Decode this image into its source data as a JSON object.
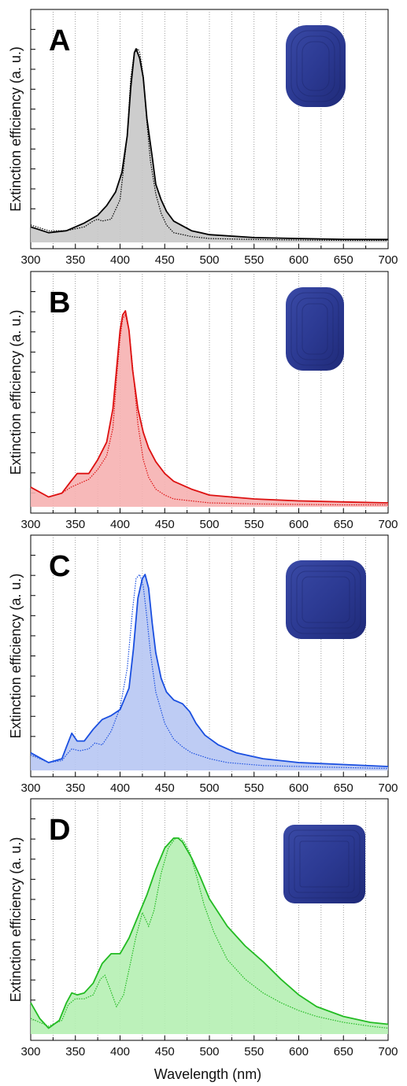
{
  "figure": {
    "ylabel": "Extinction efficiency (a. u.)",
    "xlabel": "Wavelength (nm)"
  },
  "chart_data": [
    {
      "type": "line",
      "panel_label": "A",
      "xlim": [
        300,
        700
      ],
      "xticks": [
        300,
        350,
        400,
        450,
        500,
        550,
        600,
        650,
        700
      ],
      "ylim": [
        0,
        1
      ],
      "grid": "vertical dotted",
      "color": "#000000",
      "fill_color": "#c8c8c8",
      "inset": "nanocube-icon",
      "series": [
        {
          "style": "solid",
          "x": [
            300,
            320,
            340,
            360,
            375,
            385,
            395,
            402,
            408,
            412,
            416,
            418,
            422,
            426,
            430,
            436,
            440,
            446,
            452,
            460,
            480,
            500,
            550,
            600,
            650,
            700
          ],
          "y": [
            0.08,
            0.05,
            0.06,
            0.1,
            0.14,
            0.19,
            0.26,
            0.36,
            0.55,
            0.8,
            0.98,
            1.0,
            0.95,
            0.85,
            0.64,
            0.44,
            0.3,
            0.22,
            0.16,
            0.11,
            0.06,
            0.04,
            0.025,
            0.02,
            0.016,
            0.015
          ]
        },
        {
          "style": "dotted",
          "x": [
            300,
            320,
            340,
            360,
            370,
            375,
            380,
            390,
            400,
            408,
            412,
            416,
            420,
            422,
            426,
            430,
            434,
            440,
            446,
            452,
            460,
            480,
            500,
            550,
            600,
            650,
            700
          ],
          "y": [
            0.09,
            0.06,
            0.06,
            0.08,
            0.11,
            0.12,
            0.11,
            0.12,
            0.22,
            0.55,
            0.85,
            0.98,
            1.0,
            0.98,
            0.86,
            0.62,
            0.42,
            0.25,
            0.15,
            0.09,
            0.05,
            0.03,
            0.02,
            0.015,
            0.012,
            0.01,
            0.01
          ]
        }
      ]
    },
    {
      "type": "line",
      "panel_label": "B",
      "xlim": [
        300,
        700
      ],
      "xticks": [
        300,
        350,
        400,
        450,
        500,
        550,
        600,
        650,
        700
      ],
      "ylim": [
        0,
        1
      ],
      "grid": "vertical dotted",
      "color": "#dd1111",
      "fill_color": "#f6b1b1",
      "inset": "nanocube-icon",
      "series": [
        {
          "style": "solid",
          "x": [
            300,
            320,
            335,
            345,
            352,
            358,
            365,
            375,
            385,
            392,
            396,
            400,
            403,
            406,
            410,
            414,
            420,
            426,
            432,
            440,
            450,
            460,
            480,
            500,
            550,
            600,
            650,
            700
          ],
          "y": [
            0.1,
            0.05,
            0.07,
            0.13,
            0.17,
            0.17,
            0.17,
            0.24,
            0.33,
            0.5,
            0.7,
            0.9,
            0.98,
            1.0,
            0.9,
            0.7,
            0.5,
            0.38,
            0.3,
            0.23,
            0.17,
            0.13,
            0.09,
            0.06,
            0.04,
            0.03,
            0.025,
            0.02
          ]
        },
        {
          "style": "dotted",
          "x": [
            300,
            320,
            335,
            345,
            355,
            365,
            375,
            385,
            392,
            396,
            400,
            403,
            406,
            410,
            414,
            420,
            426,
            432,
            440,
            450,
            460,
            480,
            500,
            550,
            600,
            650,
            700
          ],
          "y": [
            0.1,
            0.05,
            0.07,
            0.1,
            0.12,
            0.14,
            0.19,
            0.26,
            0.4,
            0.65,
            0.86,
            0.96,
            0.98,
            0.9,
            0.72,
            0.42,
            0.24,
            0.15,
            0.09,
            0.06,
            0.04,
            0.03,
            0.02,
            0.015,
            0.012,
            0.01,
            0.01
          ]
        }
      ]
    },
    {
      "type": "line",
      "panel_label": "C",
      "xlim": [
        300,
        700
      ],
      "xticks": [
        300,
        350,
        400,
        450,
        500,
        550,
        600,
        650,
        700
      ],
      "ylim": [
        0,
        1
      ],
      "grid": "vertical dotted",
      "color": "#1a4fe0",
      "fill_color": "#b7c7f3",
      "inset": "nanocube-icon",
      "series": [
        {
          "style": "solid",
          "x": [
            300,
            320,
            335,
            340,
            346,
            352,
            360,
            370,
            380,
            390,
            400,
            410,
            415,
            420,
            425,
            428,
            432,
            436,
            440,
            446,
            452,
            460,
            470,
            478,
            485,
            495,
            510,
            530,
            560,
            600,
            650,
            700
          ],
          "y": [
            0.09,
            0.04,
            0.06,
            0.12,
            0.19,
            0.15,
            0.15,
            0.21,
            0.26,
            0.28,
            0.31,
            0.42,
            0.62,
            0.88,
            0.98,
            1.0,
            0.93,
            0.75,
            0.6,
            0.47,
            0.4,
            0.36,
            0.34,
            0.3,
            0.24,
            0.18,
            0.13,
            0.09,
            0.06,
            0.04,
            0.03,
            0.02
          ]
        },
        {
          "style": "dotted",
          "x": [
            300,
            320,
            335,
            340,
            346,
            355,
            365,
            372,
            380,
            390,
            400,
            408,
            414,
            418,
            422,
            426,
            430,
            434,
            440,
            450,
            460,
            470,
            480,
            500,
            520,
            560,
            600,
            650,
            700
          ],
          "y": [
            0.08,
            0.04,
            0.05,
            0.08,
            0.11,
            0.1,
            0.11,
            0.14,
            0.13,
            0.2,
            0.32,
            0.52,
            0.82,
            0.98,
            1.0,
            0.94,
            0.78,
            0.6,
            0.4,
            0.24,
            0.16,
            0.12,
            0.09,
            0.06,
            0.04,
            0.025,
            0.02,
            0.015,
            0.01
          ]
        }
      ]
    },
    {
      "type": "line",
      "panel_label": "D",
      "xlim": [
        300,
        700
      ],
      "xticks": [
        300,
        350,
        400,
        450,
        500,
        550,
        600,
        650,
        700
      ],
      "ylim": [
        0,
        1
      ],
      "grid": "vertical dotted",
      "color": "#22bb22",
      "fill_color": "#b5f0b3",
      "inset": "nanocube-icon",
      "series": [
        {
          "style": "solid",
          "x": [
            300,
            310,
            320,
            332,
            340,
            346,
            352,
            360,
            370,
            380,
            390,
            400,
            410,
            420,
            430,
            440,
            450,
            460,
            465,
            470,
            480,
            490,
            500,
            520,
            540,
            560,
            580,
            600,
            620,
            650,
            680,
            700
          ],
          "y": [
            0.16,
            0.08,
            0.03,
            0.07,
            0.16,
            0.21,
            0.2,
            0.21,
            0.26,
            0.36,
            0.41,
            0.41,
            0.49,
            0.6,
            0.71,
            0.84,
            0.95,
            1.0,
            1.0,
            0.98,
            0.9,
            0.8,
            0.69,
            0.55,
            0.45,
            0.37,
            0.28,
            0.2,
            0.14,
            0.09,
            0.06,
            0.05
          ]
        },
        {
          "style": "dotted",
          "x": [
            300,
            320,
            335,
            342,
            350,
            360,
            370,
            378,
            383,
            388,
            396,
            404,
            412,
            418,
            425,
            432,
            438,
            446,
            454,
            462,
            468,
            472,
            478,
            486,
            494,
            505,
            520,
            540,
            560,
            580,
            600,
            620,
            650,
            680,
            700
          ],
          "y": [
            0.08,
            0.04,
            0.07,
            0.15,
            0.18,
            0.18,
            0.2,
            0.28,
            0.3,
            0.24,
            0.14,
            0.2,
            0.37,
            0.5,
            0.62,
            0.55,
            0.63,
            0.82,
            0.95,
            1.0,
            1.0,
            0.98,
            0.93,
            0.8,
            0.66,
            0.52,
            0.38,
            0.28,
            0.21,
            0.16,
            0.12,
            0.09,
            0.06,
            0.04,
            0.03
          ]
        }
      ]
    }
  ]
}
